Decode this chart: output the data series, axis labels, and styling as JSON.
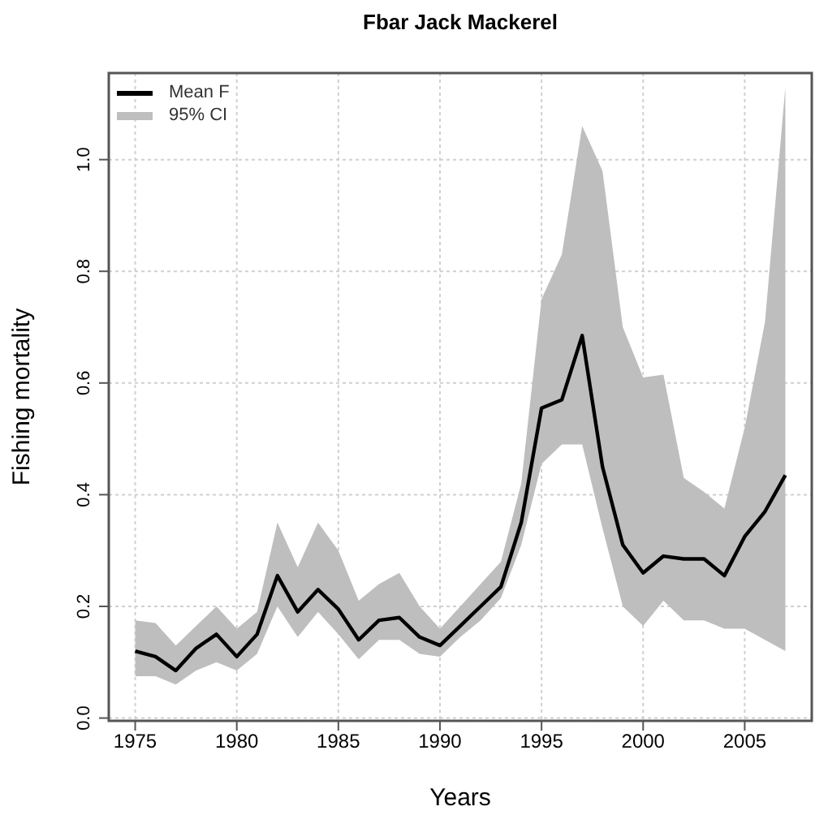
{
  "chart_data": {
    "type": "line",
    "title": "Fbar Jack Mackerel",
    "xlabel": "Years",
    "ylabel": "Fishing mortality",
    "x": [
      1975,
      1976,
      1977,
      1978,
      1979,
      1980,
      1981,
      1982,
      1983,
      1984,
      1985,
      1986,
      1987,
      1988,
      1989,
      1990,
      1991,
      1992,
      1993,
      1994,
      1995,
      1996,
      1997,
      1998,
      1999,
      2000,
      2001,
      2002,
      2003,
      2004,
      2005,
      2006,
      2007
    ],
    "series": [
      {
        "name": "Mean F",
        "color": "#000000",
        "values": [
          0.12,
          0.11,
          0.085,
          0.125,
          0.15,
          0.11,
          0.15,
          0.255,
          0.19,
          0.23,
          0.195,
          0.14,
          0.175,
          0.18,
          0.145,
          0.13,
          0.165,
          0.2,
          0.235,
          0.35,
          0.555,
          0.57,
          0.685,
          0.45,
          0.31,
          0.26,
          0.29,
          0.285,
          0.285,
          0.255,
          0.325,
          0.37,
          0.435
        ],
        "lower": [
          0.075,
          0.075,
          0.06,
          0.085,
          0.1,
          0.085,
          0.115,
          0.2,
          0.145,
          0.19,
          0.15,
          0.105,
          0.14,
          0.14,
          0.115,
          0.11,
          0.145,
          0.175,
          0.215,
          0.31,
          0.455,
          0.49,
          0.49,
          0.34,
          0.2,
          0.165,
          0.21,
          0.175,
          0.175,
          0.16,
          0.16,
          0.14,
          0.12
        ],
        "upper": [
          0.175,
          0.17,
          0.13,
          0.165,
          0.2,
          0.16,
          0.19,
          0.35,
          0.27,
          0.35,
          0.3,
          0.21,
          0.24,
          0.26,
          0.2,
          0.16,
          0.2,
          0.24,
          0.28,
          0.42,
          0.75,
          0.83,
          1.06,
          0.98,
          0.7,
          0.61,
          0.615,
          0.43,
          0.405,
          0.375,
          0.52,
          0.71,
          1.13
        ]
      }
    ],
    "annotations": [
      "95% CI"
    ],
    "xlim": [
      1973.7,
      2008.3
    ],
    "xticks": [
      1975,
      1980,
      1985,
      1990,
      1995,
      2000,
      2005
    ],
    "ylim": [
      -0.005,
      1.155
    ],
    "yticks": [
      {
        "value": 0,
        "label": "0.0"
      },
      {
        "value": 0.2,
        "label": "0.2"
      },
      {
        "value": 0.4,
        "label": "0.4"
      },
      {
        "value": 0.6,
        "label": "0.6"
      },
      {
        "value": 0.8,
        "label": "0.8"
      },
      {
        "value": 1,
        "label": "1.0"
      }
    ],
    "grid": true,
    "legend": "top left",
    "line_style": "solid",
    "marker": "none"
  }
}
